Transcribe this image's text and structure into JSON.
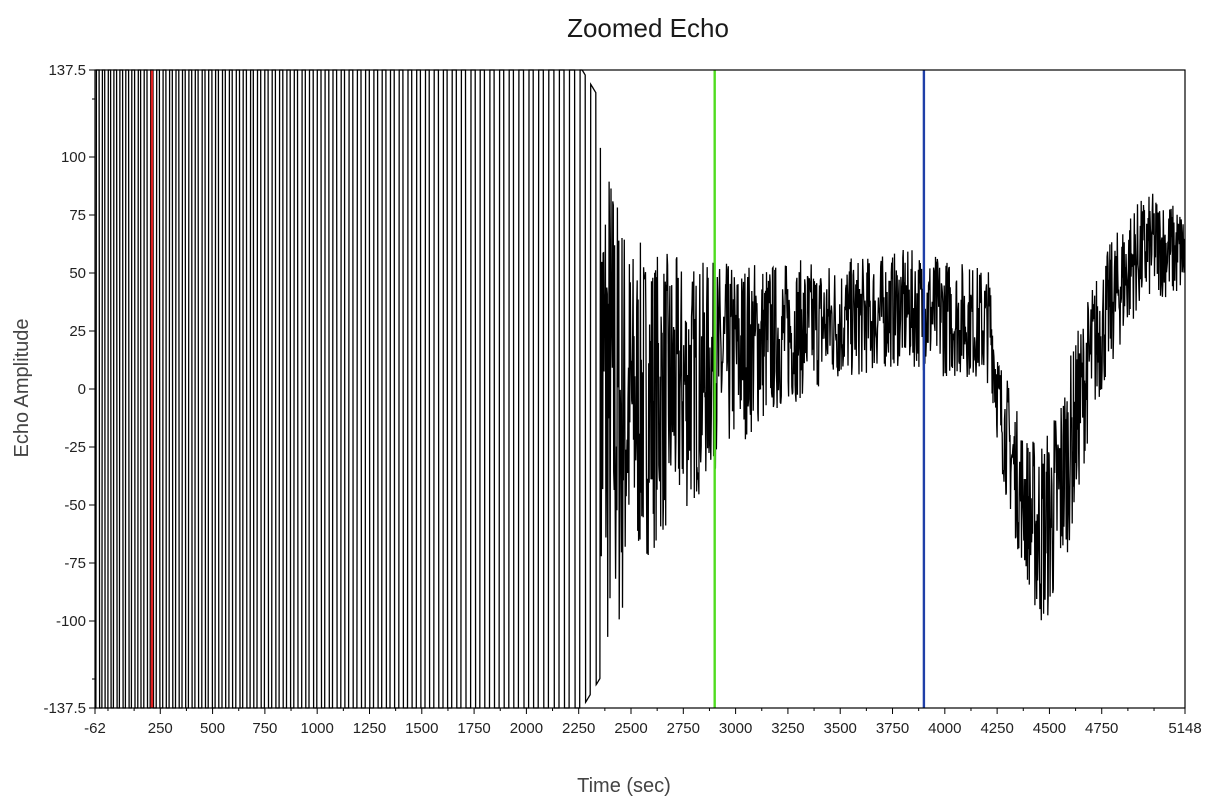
{
  "chart_data": {
    "type": "line",
    "title": "Zoomed Echo",
    "xlabel": "Time (sec)",
    "ylabel": "Echo Amplitude",
    "xlim": [
      -62,
      5148
    ],
    "ylim": [
      -137.5,
      137.5
    ],
    "grid": false,
    "x_ticks": [
      -62,
      250,
      500,
      750,
      1000,
      1250,
      1500,
      1750,
      2000,
      2250,
      2500,
      2750,
      3000,
      3250,
      3500,
      3750,
      4000,
      4250,
      4500,
      4750,
      5148
    ],
    "x_tick_labels": [
      "-62",
      "250",
      "500",
      "750",
      "1000",
      "1250",
      "1500",
      "1750",
      "2000",
      "2250",
      "2500",
      "2750",
      "3000",
      "3250",
      "3500",
      "3750",
      "4000",
      "4250",
      "4500",
      "4750",
      "5148"
    ],
    "y_ticks": [
      -137.5,
      -100,
      -75,
      -50,
      -25,
      0,
      25,
      50,
      75,
      100,
      137.5
    ],
    "y_tick_labels": [
      "-137.5",
      "-100",
      "-75",
      "-50",
      "-25",
      "0",
      "25",
      "50",
      "75",
      "100",
      "137.5"
    ],
    "series": [
      {
        "color": "#000000",
        "envelope": {
          "x": [
            -62,
            100,
            180,
            350,
            600,
            900,
            1200,
            1500,
            1800,
            2100,
            2250,
            2350,
            2450,
            2500,
            2600,
            2700,
            2800,
            2900,
            3000,
            3100,
            3200,
            3300,
            3400,
            3500,
            3600,
            3700,
            3800,
            3900,
            4000,
            4100,
            4220,
            4260,
            4300,
            4350,
            4400,
            4450,
            4500,
            4550,
            4600,
            4650,
            4700,
            4800,
            4900,
            5000,
            5100,
            5148
          ],
          "upper": [
            140,
            140,
            140,
            140,
            140,
            140,
            140,
            140,
            140,
            140,
            140,
            125,
            85,
            65,
            62,
            58,
            55,
            55,
            55,
            57,
            55,
            56,
            55,
            56,
            57,
            58,
            60,
            60,
            57,
            55,
            52,
            15,
            5,
            -10,
            -20,
            -20,
            -15,
            0,
            15,
            30,
            45,
            65,
            80,
            85,
            80,
            78
          ],
          "lower": [
            -140,
            -140,
            -140,
            -140,
            -140,
            -140,
            -140,
            -140,
            -140,
            -140,
            -140,
            -125,
            -110,
            -80,
            -70,
            -60,
            -50,
            -35,
            -25,
            -18,
            -10,
            -5,
            0,
            3,
            5,
            8,
            10,
            8,
            5,
            5,
            2,
            -30,
            -50,
            -70,
            -85,
            -105,
            -100,
            -85,
            -65,
            -40,
            -15,
            10,
            30,
            40,
            38,
            40
          ]
        }
      }
    ],
    "vertical_markers": [
      {
        "x": 210,
        "color": "#e02020"
      },
      {
        "x": 2900,
        "color": "#4fdc1f"
      },
      {
        "x": 3900,
        "color": "#1f3fa8"
      }
    ]
  }
}
